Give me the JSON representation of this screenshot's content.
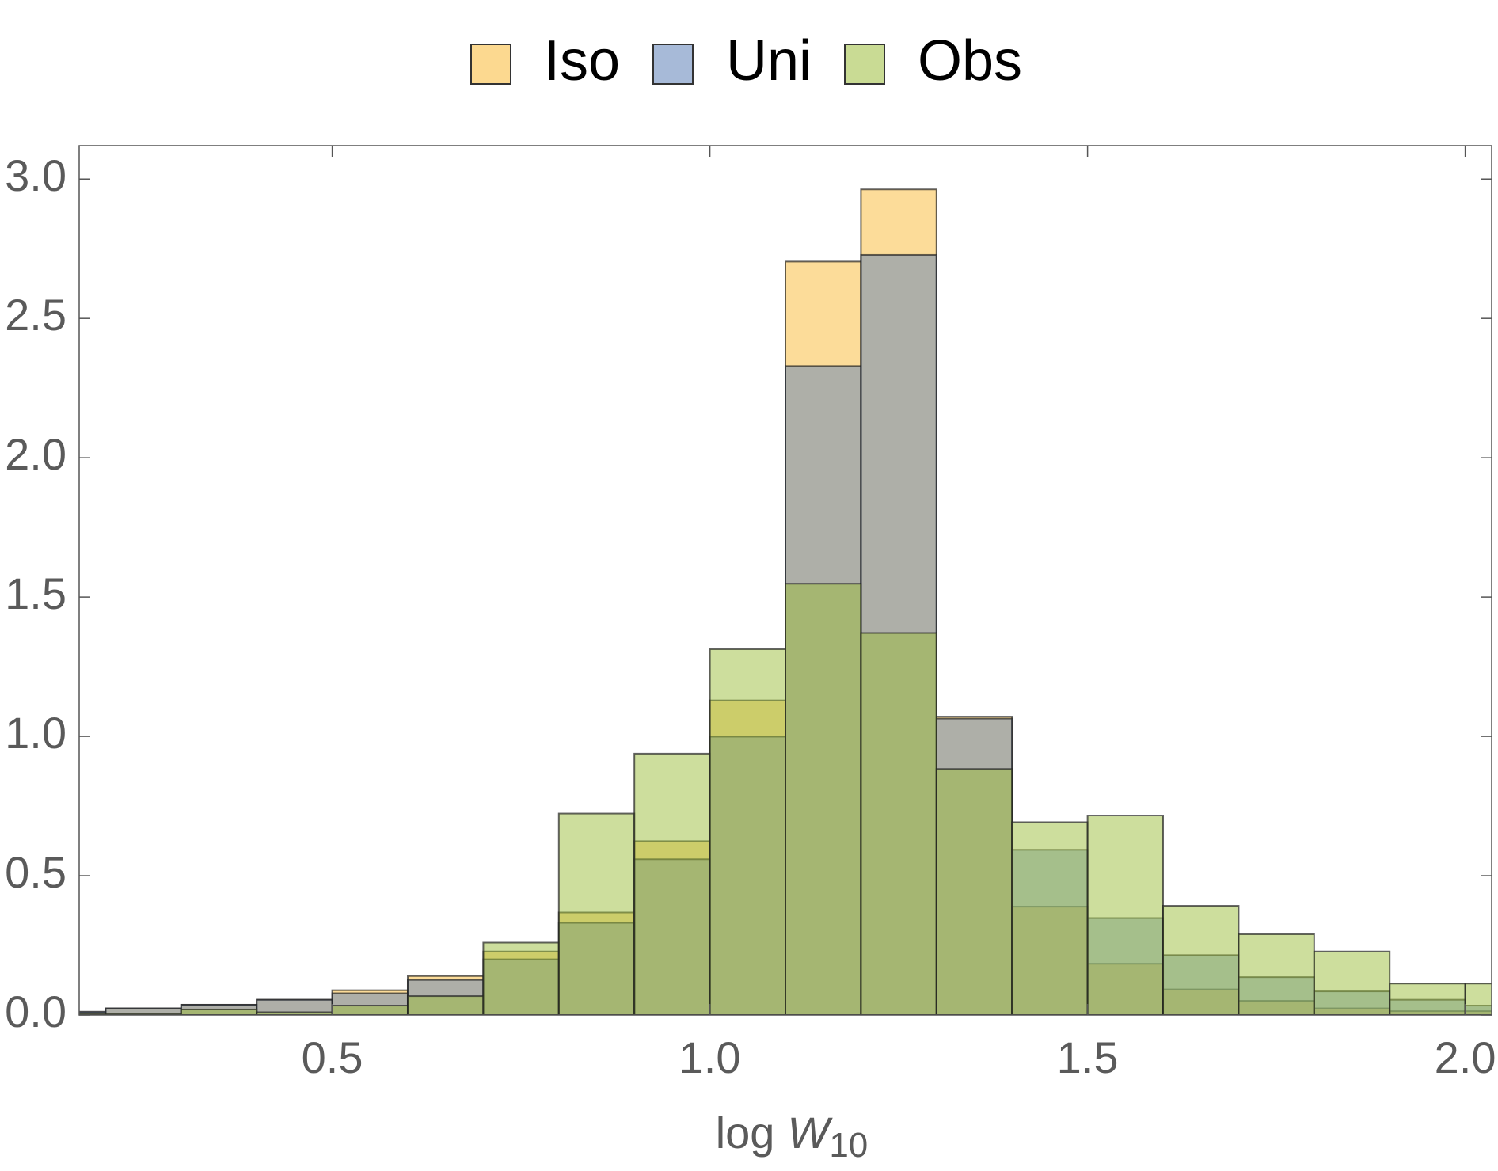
{
  "chart_data": {
    "type": "histogram",
    "xlabel_parts": [
      "log",
      "W",
      "10"
    ],
    "bins": [
      0.1,
      0.2,
      0.3,
      0.4,
      0.5,
      0.6,
      0.7,
      0.8,
      0.9,
      1.0,
      1.1,
      1.2,
      1.3,
      1.4,
      1.5,
      1.6,
      1.7,
      1.8,
      1.9,
      2.0,
      2.1
    ],
    "series": [
      {
        "name": "Iso",
        "color": "#f9b934",
        "values": [
          0.01,
          0.024,
          0.037,
          0.055,
          0.089,
          0.14,
          0.228,
          0.368,
          0.624,
          1.129,
          2.704,
          2.963,
          1.071,
          0.389,
          0.184,
          0.092,
          0.051,
          0.024,
          0.014,
          0.014
        ]
      },
      {
        "name": "Uni",
        "color": "#5f82b8",
        "values": [
          0.012,
          0.024,
          0.037,
          0.055,
          0.078,
          0.126,
          0.2,
          0.331,
          0.559,
          0.999,
          2.329,
          2.728,
          1.064,
          0.593,
          0.348,
          0.215,
          0.136,
          0.085,
          0.055,
          0.034
        ]
      },
      {
        "name": "Obs",
        "color": "#9cbd3c",
        "values": [
          0.005,
          0.005,
          0.02,
          0.01,
          0.034,
          0.068,
          0.26,
          0.723,
          0.938,
          1.313,
          1.548,
          1.371,
          0.883,
          0.692,
          0.716,
          0.392,
          0.29,
          0.228,
          0.113,
          0.113
        ]
      }
    ],
    "xlim": [
      0.165,
      2.035
    ],
    "ylim": [
      0,
      3.12
    ],
    "xticks": [
      0.5,
      {
        "value": 1,
        "label": "1.0"
      },
      1.5,
      {
        "value": 2,
        "label": "2.0"
      }
    ],
    "yticks": [
      {
        "value": 0,
        "label": "0.0"
      },
      0.5,
      {
        "value": 1,
        "label": "1.0"
      },
      1.5,
      {
        "value": 2,
        "label": "2.0"
      },
      2.5,
      {
        "value": 3,
        "label": "3.0"
      }
    ],
    "legend": "top"
  }
}
